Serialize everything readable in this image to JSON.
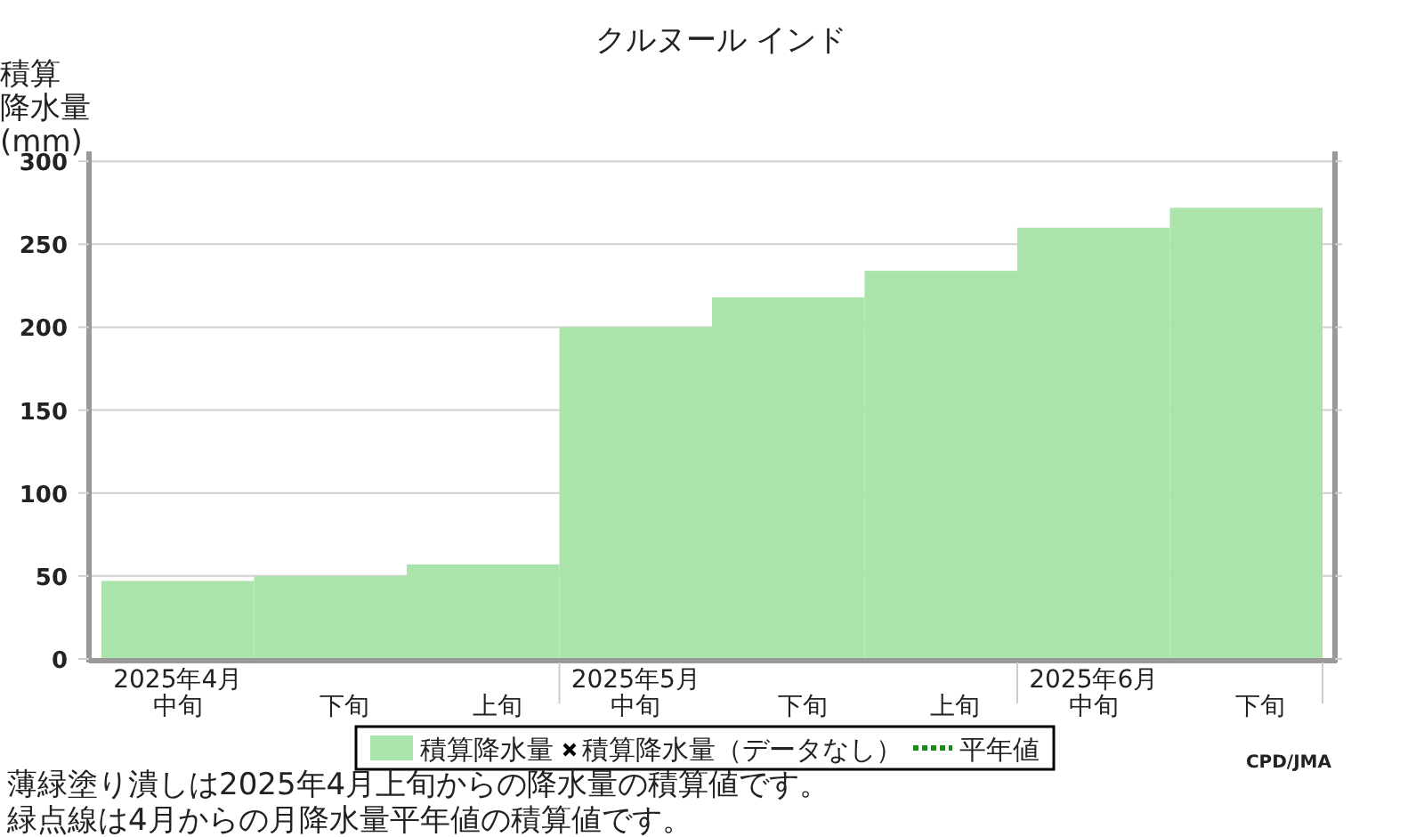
{
  "chart_data": {
    "type": "bar",
    "title": "クルヌール インド",
    "ylabel": "積算降水量(mm)",
    "categories": [
      "2025年4月中旬",
      "下旬",
      "上旬",
      "2025年5月中旬",
      "下旬",
      "上旬",
      "2025年6月中旬",
      "下旬"
    ],
    "series": [
      {
        "name": "積算降水量",
        "color": "#abe4aa",
        "values": [
          47,
          50,
          57,
          200,
          218,
          234,
          260,
          272
        ]
      },
      {
        "name": "積算降水量（データなし）",
        "type": "scatter",
        "marker": "cross",
        "color": "#000000",
        "values": [
          null,
          null,
          null,
          null,
          null,
          null,
          null,
          null
        ]
      },
      {
        "name": "平年値",
        "type": "line",
        "line_style": "dotted",
        "color": "#1a8a1a",
        "values": [
          null,
          null,
          null,
          null,
          null,
          null,
          null,
          null
        ]
      }
    ],
    "ylim": [
      0,
      306
    ],
    "yticks": [
      0,
      50,
      100,
      150,
      200,
      250,
      300
    ],
    "grid": "y",
    "legend": "bottom",
    "annotations": [
      "薄緑塗り潰しは2025年4月上旬からの降水量の積算値です。",
      "緑点線は4月からの月降水量平年値の積算値です。",
      "CPD/JMA"
    ]
  }
}
